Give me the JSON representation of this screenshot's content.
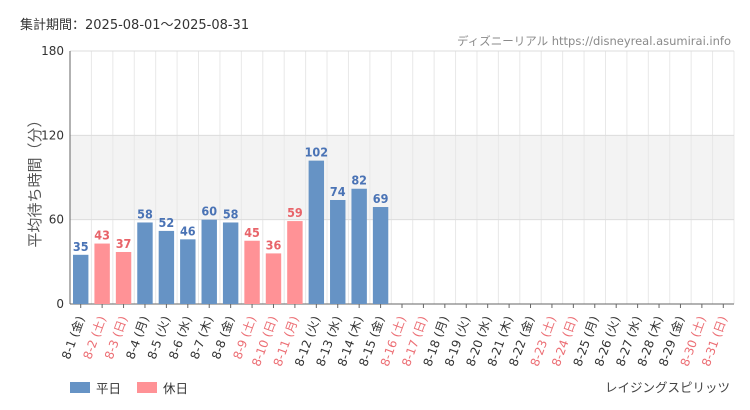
{
  "header": {
    "period_label": "集計期間：2025-08-01〜2025-08-31",
    "site_label": "ディズニーリアル https://disneyreal.asumirai.info"
  },
  "footer": {
    "attraction_name": "レイジングスピリッツ"
  },
  "legend": [
    {
      "label": "平日",
      "color": "#6693c5"
    },
    {
      "label": "休日",
      "color": "#ff9296"
    }
  ],
  "colors": {
    "weekday_bar": "#6693c5",
    "holiday_bar": "#ff9296",
    "weekday_text": "#4a73b5",
    "holiday_text": "#e8646a",
    "axis_label_weekday": "#333333",
    "axis_label_holiday": "#ec6e74",
    "band": "#f3f3f3"
  },
  "chart_data": {
    "type": "bar",
    "ylabel": "平均待ち時間（分）",
    "ylim": [
      0,
      180
    ],
    "yticks": [
      0,
      60,
      120,
      180
    ],
    "shaded_band": [
      60,
      120
    ],
    "grid": true,
    "legend_position": "bottom-left",
    "categories": [
      "8-1 (金)",
      "8-2 (土)",
      "8-3 (日)",
      "8-4 (月)",
      "8-5 (火)",
      "8-6 (水)",
      "8-7 (木)",
      "8-8 (金)",
      "8-9 (土)",
      "8-10 (日)",
      "8-11 (月)",
      "8-12 (火)",
      "8-13 (水)",
      "8-14 (木)",
      "8-15 (金)",
      "8-16 (土)",
      "8-17 (日)",
      "8-18 (月)",
      "8-19 (火)",
      "8-20 (水)",
      "8-21 (木)",
      "8-22 (金)",
      "8-23 (土)",
      "8-24 (日)",
      "8-25 (月)",
      "8-26 (火)",
      "8-27 (水)",
      "8-28 (木)",
      "8-29 (金)",
      "8-30 (土)",
      "8-31 (日)"
    ],
    "holiday": [
      false,
      true,
      true,
      false,
      false,
      false,
      false,
      false,
      true,
      true,
      true,
      false,
      false,
      false,
      false,
      true,
      true,
      false,
      false,
      false,
      false,
      false,
      true,
      true,
      false,
      false,
      false,
      false,
      false,
      true,
      true
    ],
    "series": [
      {
        "name": "平日",
        "values": [
          35,
          null,
          null,
          58,
          52,
          46,
          60,
          58,
          null,
          null,
          null,
          102,
          74,
          82,
          69,
          null,
          null,
          null,
          null,
          null,
          null,
          null,
          null,
          null,
          null,
          null,
          null,
          null,
          null,
          null,
          null
        ]
      },
      {
        "name": "休日",
        "values": [
          null,
          43,
          37,
          null,
          null,
          null,
          null,
          null,
          45,
          36,
          59,
          null,
          null,
          null,
          null,
          null,
          null,
          null,
          null,
          null,
          null,
          null,
          null,
          null,
          null,
          null,
          null,
          null,
          null,
          null,
          null
        ]
      }
    ]
  }
}
